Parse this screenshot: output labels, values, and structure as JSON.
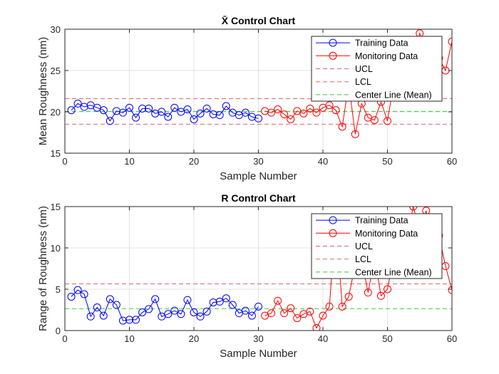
{
  "chart_data": [
    {
      "type": "line",
      "title": "X̄ Control Chart",
      "xlabel": "Sample Number",
      "ylabel": "Mean Roughness (nm)",
      "xlim": [
        0,
        60
      ],
      "ylim": [
        15,
        30
      ],
      "xticks": [
        "0",
        "10",
        "20",
        "30",
        "40",
        "50",
        "60"
      ],
      "yticks": [
        "15",
        "20",
        "25",
        "30"
      ],
      "grid": true,
      "legend_position": "top-right",
      "series": [
        {
          "name": "Training Data",
          "color": "#0000ff",
          "marker": "circle",
          "x": [
            1,
            2,
            3,
            4,
            5,
            6,
            7,
            8,
            9,
            10,
            11,
            12,
            13,
            14,
            15,
            16,
            17,
            18,
            19,
            20,
            21,
            22,
            23,
            24,
            25,
            26,
            27,
            28,
            29,
            30
          ],
          "values": [
            20.2,
            21.0,
            20.6,
            20.8,
            20.5,
            20.2,
            18.9,
            20.1,
            19.9,
            20.5,
            19.3,
            20.4,
            20.4,
            19.8,
            20.0,
            19.4,
            20.5,
            20.0,
            20.3,
            19.1,
            19.8,
            20.4,
            19.7,
            19.6,
            20.7,
            19.9,
            19.6,
            19.9,
            19.4,
            19.2
          ]
        },
        {
          "name": "Monitoring Data",
          "color": "#ff0000",
          "marker": "circle",
          "x": [
            31,
            32,
            33,
            34,
            35,
            36,
            37,
            38,
            39,
            40,
            41,
            42,
            43,
            44,
            45,
            46,
            47,
            48,
            49,
            50,
            51,
            52,
            53,
            54,
            55,
            56,
            57,
            58,
            59,
            60
          ],
          "values": [
            20.1,
            19.9,
            20.3,
            19.7,
            19.1,
            20.1,
            19.8,
            20.4,
            19.9,
            20.5,
            20.8,
            20.2,
            18.2,
            23.4,
            17.3,
            21.0,
            19.3,
            19.0,
            21.2,
            18.9,
            23.5,
            25.5,
            27.0,
            26.5,
            29.5,
            27.0,
            26.0,
            26.5,
            25.0,
            28.5
          ]
        }
      ],
      "reference_lines": [
        {
          "name": "UCL",
          "value": 21.6,
          "color": "#e06666",
          "style": "dashed"
        },
        {
          "name": "LCL",
          "value": 18.5,
          "color": "#e06666",
          "style": "dashed"
        },
        {
          "name": "Center Line (Mean)",
          "value": 20.05,
          "color": "#33cc33",
          "style": "dashed"
        }
      ]
    },
    {
      "type": "line",
      "title": "R Control Chart",
      "xlabel": "Sample Number",
      "ylabel": "Range of Roughness (nm)",
      "xlim": [
        0,
        60
      ],
      "ylim": [
        0,
        15
      ],
      "xticks": [
        "0",
        "10",
        "20",
        "30",
        "40",
        "50",
        "60"
      ],
      "yticks": [
        "0",
        "5",
        "10",
        "15"
      ],
      "grid": true,
      "legend_position": "top-right",
      "series": [
        {
          "name": "Training Data",
          "color": "#0000ff",
          "marker": "circle",
          "x": [
            1,
            2,
            3,
            4,
            5,
            6,
            7,
            8,
            9,
            10,
            11,
            12,
            13,
            14,
            15,
            16,
            17,
            18,
            19,
            20,
            21,
            22,
            23,
            24,
            25,
            26,
            27,
            28,
            29,
            30
          ],
          "values": [
            4.1,
            4.9,
            4.4,
            1.7,
            2.8,
            1.8,
            3.8,
            3.1,
            1.2,
            1.3,
            1.3,
            2.2,
            2.6,
            3.8,
            1.7,
            2.0,
            2.4,
            2.0,
            3.7,
            2.2,
            1.7,
            2.3,
            3.4,
            3.5,
            3.9,
            3.1,
            2.1,
            2.4,
            1.8,
            2.9
          ]
        },
        {
          "name": "Monitoring Data",
          "color": "#ff0000",
          "marker": "circle",
          "x": [
            31,
            32,
            33,
            34,
            35,
            36,
            37,
            38,
            39,
            40,
            41,
            42,
            43,
            44,
            45,
            46,
            47,
            48,
            49,
            50,
            51,
            52,
            53,
            54,
            55,
            56,
            57,
            58,
            59,
            60
          ],
          "values": [
            1.8,
            2.1,
            3.6,
            2.1,
            2.7,
            1.5,
            2.0,
            2.3,
            0.3,
            1.8,
            2.9,
            13.7,
            2.9,
            4.1,
            8.0,
            8.5,
            4.6,
            8.9,
            4.2,
            5.0,
            9.0,
            10.5,
            11.0,
            15.0,
            12.0,
            14.5,
            10.0,
            11.5,
            7.8,
            4.9
          ]
        }
      ],
      "reference_lines": [
        {
          "name": "UCL",
          "value": 5.65,
          "color": "#e06666",
          "style": "dashed"
        },
        {
          "name": "LCL",
          "value": 0,
          "color": "#e06666",
          "style": "dashed"
        },
        {
          "name": "Center Line (Mean)",
          "value": 2.65,
          "color": "#33cc33",
          "style": "dashed"
        }
      ]
    }
  ]
}
